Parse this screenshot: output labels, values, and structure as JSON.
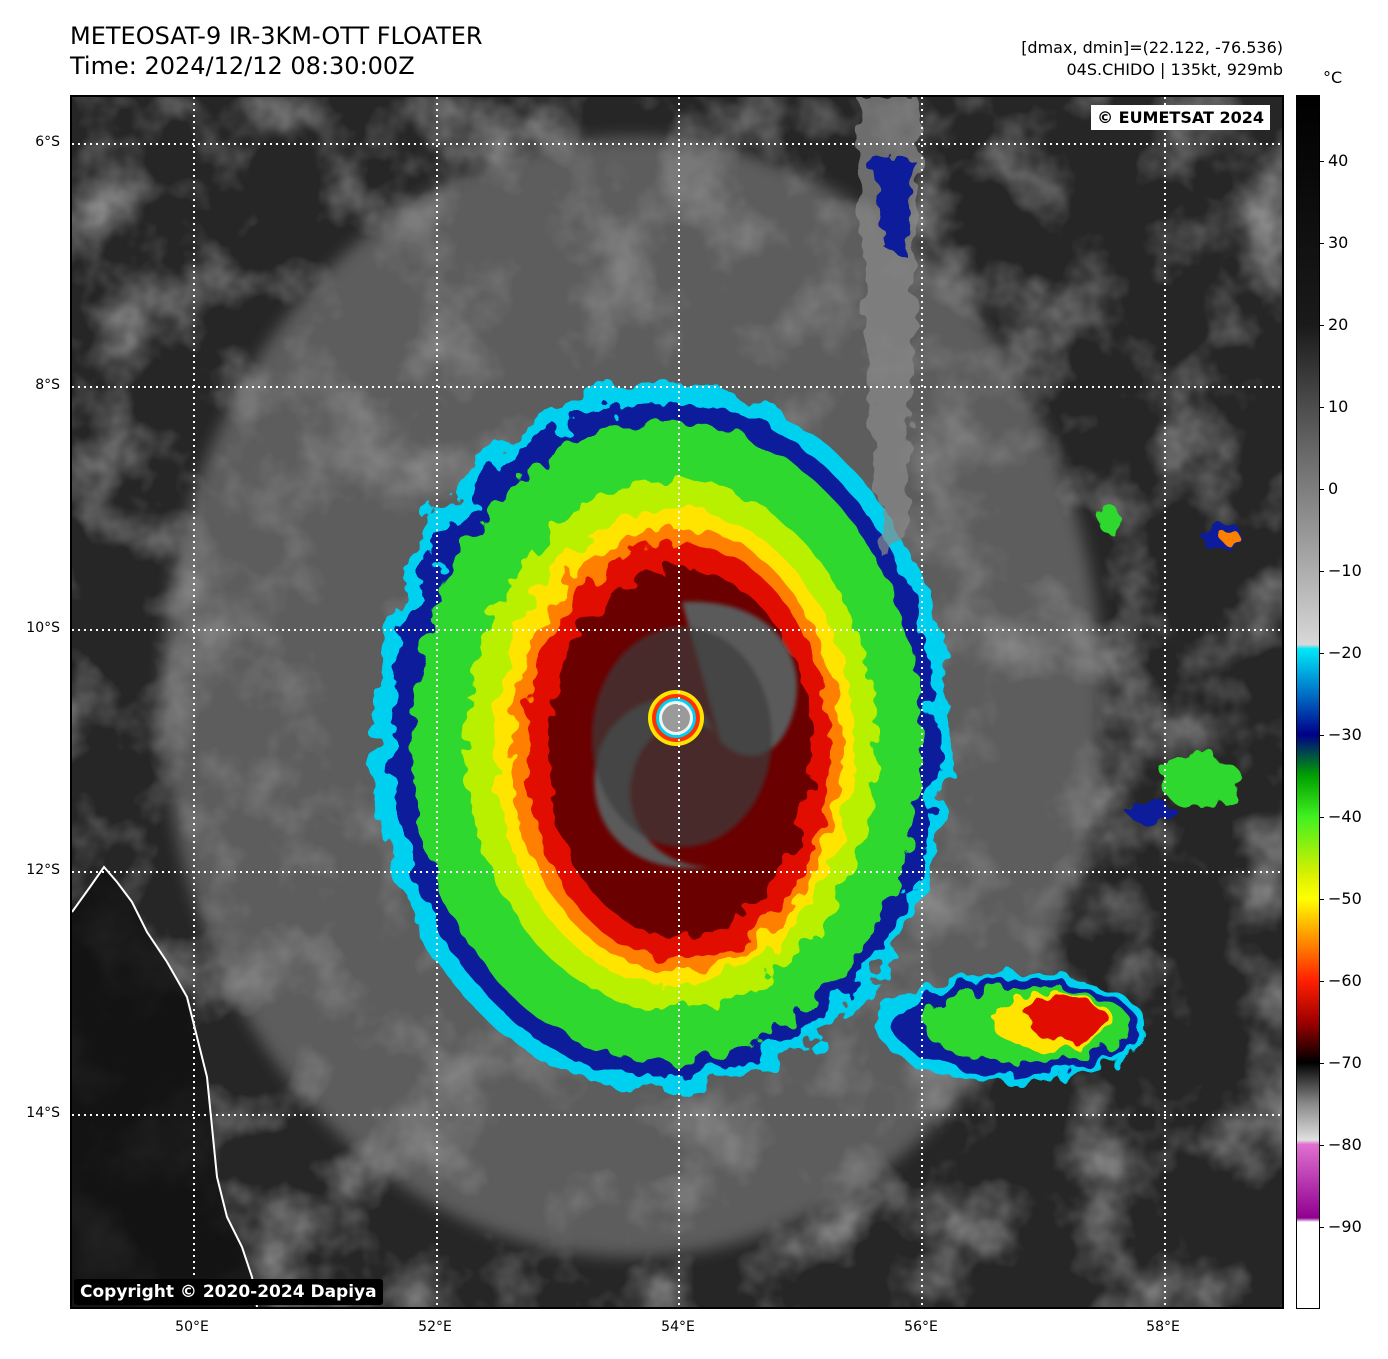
{
  "header": {
    "title_line1": "METEOSAT-9 IR-3KM-OTT FLOATER",
    "title_line2": "Time: 2024/12/12 08:30:00Z",
    "stats_line1": "[dmax, dmin]=(22.122, -76.536)",
    "stats_line2": "04S.CHIDO | 135kt, 929mb"
  },
  "map": {
    "lat_labels": [
      "6°S",
      "8°S",
      "10°S",
      "12°S",
      "14°S"
    ],
    "lon_labels": [
      "50°E",
      "52°E",
      "54°E",
      "56°E",
      "58°E"
    ],
    "watermark_top_right": "© EUMETSAT 2024",
    "watermark_bottom_left": "Copyright © 2020-2024 Dapiya"
  },
  "colorbar": {
    "unit": "°C",
    "ticks": [
      "40",
      "30",
      "20",
      "10",
      "0",
      "−10",
      "−20",
      "−30",
      "−40",
      "−50",
      "−60",
      "−70",
      "−80",
      "−90"
    ],
    "range": [
      48,
      -100
    ]
  }
}
